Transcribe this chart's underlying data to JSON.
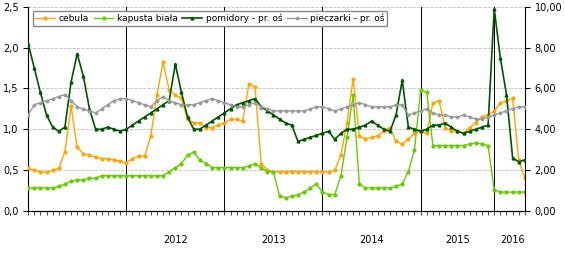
{
  "legend": [
    "cebula",
    "kapusta biała",
    "pomidory - pr. oś",
    "pieczarki - pr. oś"
  ],
  "colors": {
    "cebula": "#FFA500",
    "kapusta": "#66CC00",
    "pomidory": "#005500",
    "pieczarki": "#999999"
  },
  "ylim_left": [
    0,
    2.5
  ],
  "ylim_right": [
    0,
    10.0
  ],
  "years": [
    "2012",
    "2013",
    "2014",
    "2015",
    "2016"
  ],
  "background": "#FFFFFF",
  "grid_color": "#C0C0C0",
  "cebula": [
    0.52,
    0.5,
    0.48,
    0.47,
    0.5,
    0.52,
    0.72,
    1.28,
    0.78,
    0.7,
    0.68,
    0.66,
    0.64,
    0.64,
    0.62,
    0.61,
    0.59,
    0.64,
    0.67,
    0.67,
    0.92,
    1.42,
    1.82,
    1.48,
    1.42,
    1.38,
    1.12,
    1.08,
    1.08,
    1.02,
    1.02,
    1.05,
    1.08,
    1.12,
    1.12,
    1.1,
    1.55,
    1.52,
    0.58,
    0.5,
    0.48,
    0.48,
    0.48,
    0.48,
    0.48,
    0.48,
    0.48,
    0.48,
    0.48,
    0.48,
    0.5,
    0.68,
    1.08,
    1.62,
    0.92,
    0.88,
    0.9,
    0.92,
    0.98,
    1.02,
    0.85,
    0.82,
    0.88,
    0.95,
    0.98,
    0.95,
    1.32,
    1.35,
    1.02,
    0.98,
    0.98,
    0.95,
    1.02,
    1.08,
    1.15,
    1.18,
    1.22,
    1.32,
    1.35,
    1.38,
    0.62,
    0.4
  ],
  "kapusta": [
    0.28,
    0.28,
    0.28,
    0.28,
    0.28,
    0.3,
    0.33,
    0.36,
    0.38,
    0.38,
    0.4,
    0.4,
    0.43,
    0.43,
    0.43,
    0.43,
    0.43,
    0.43,
    0.43,
    0.43,
    0.43,
    0.43,
    0.43,
    0.48,
    0.53,
    0.58,
    0.68,
    0.72,
    0.62,
    0.58,
    0.53,
    0.53,
    0.53,
    0.53,
    0.53,
    0.53,
    0.55,
    0.58,
    0.53,
    0.48,
    0.48,
    0.18,
    0.16,
    0.18,
    0.2,
    0.23,
    0.28,
    0.33,
    0.23,
    0.2,
    0.2,
    0.43,
    0.9,
    1.42,
    0.33,
    0.28,
    0.28,
    0.28,
    0.28,
    0.28,
    0.3,
    0.33,
    0.48,
    0.75,
    1.48,
    1.45,
    0.8,
    0.8,
    0.8,
    0.8,
    0.8,
    0.8,
    0.82,
    0.83,
    0.82,
    0.8,
    0.26,
    0.23,
    0.23,
    0.23,
    0.23,
    0.23
  ],
  "pomidory": [
    8.2,
    7.0,
    5.8,
    4.7,
    4.1,
    3.9,
    4.1,
    6.3,
    7.7,
    6.6,
    5.0,
    4.0,
    4.0,
    4.1,
    4.0,
    3.9,
    4.0,
    4.2,
    4.4,
    4.6,
    4.8,
    5.0,
    5.2,
    5.4,
    7.2,
    5.8,
    4.6,
    4.0,
    4.0,
    4.2,
    4.4,
    4.6,
    4.8,
    5.0,
    5.2,
    5.3,
    5.4,
    5.5,
    5.1,
    4.9,
    4.7,
    4.5,
    4.3,
    4.2,
    3.4,
    3.5,
    3.6,
    3.7,
    3.8,
    3.9,
    3.5,
    3.8,
    4.0,
    4.0,
    4.1,
    4.2,
    4.4,
    4.2,
    4.0,
    3.9,
    4.7,
    6.4,
    4.1,
    4.0,
    3.9,
    4.0,
    4.2,
    4.2,
    4.3,
    4.1,
    3.9,
    3.8,
    3.9,
    4.0,
    4.1,
    4.2,
    9.9,
    7.5,
    5.7,
    2.6,
    2.4,
    2.5
  ],
  "pieczarki": [
    4.7,
    5.2,
    5.3,
    5.4,
    5.5,
    5.6,
    5.7,
    5.4,
    5.1,
    5.0,
    4.9,
    4.8,
    5.0,
    5.2,
    5.4,
    5.5,
    5.5,
    5.4,
    5.3,
    5.2,
    5.1,
    5.4,
    5.6,
    5.4,
    5.3,
    5.2,
    5.2,
    5.2,
    5.3,
    5.4,
    5.5,
    5.4,
    5.3,
    5.2,
    5.1,
    5.1,
    5.2,
    5.3,
    5.1,
    5.0,
    4.9,
    4.9,
    4.9,
    4.9,
    4.9,
    4.9,
    5.0,
    5.1,
    5.1,
    5.0,
    4.9,
    5.0,
    5.1,
    5.2,
    5.3,
    5.2,
    5.1,
    5.1,
    5.1,
    5.1,
    5.2,
    5.2,
    4.7,
    4.8,
    4.9,
    5.0,
    4.8,
    4.7,
    4.7,
    4.6,
    4.6,
    4.7,
    4.6,
    4.5,
    4.5,
    4.6,
    4.7,
    4.8,
    4.9,
    5.0,
    5.1,
    5.1
  ]
}
